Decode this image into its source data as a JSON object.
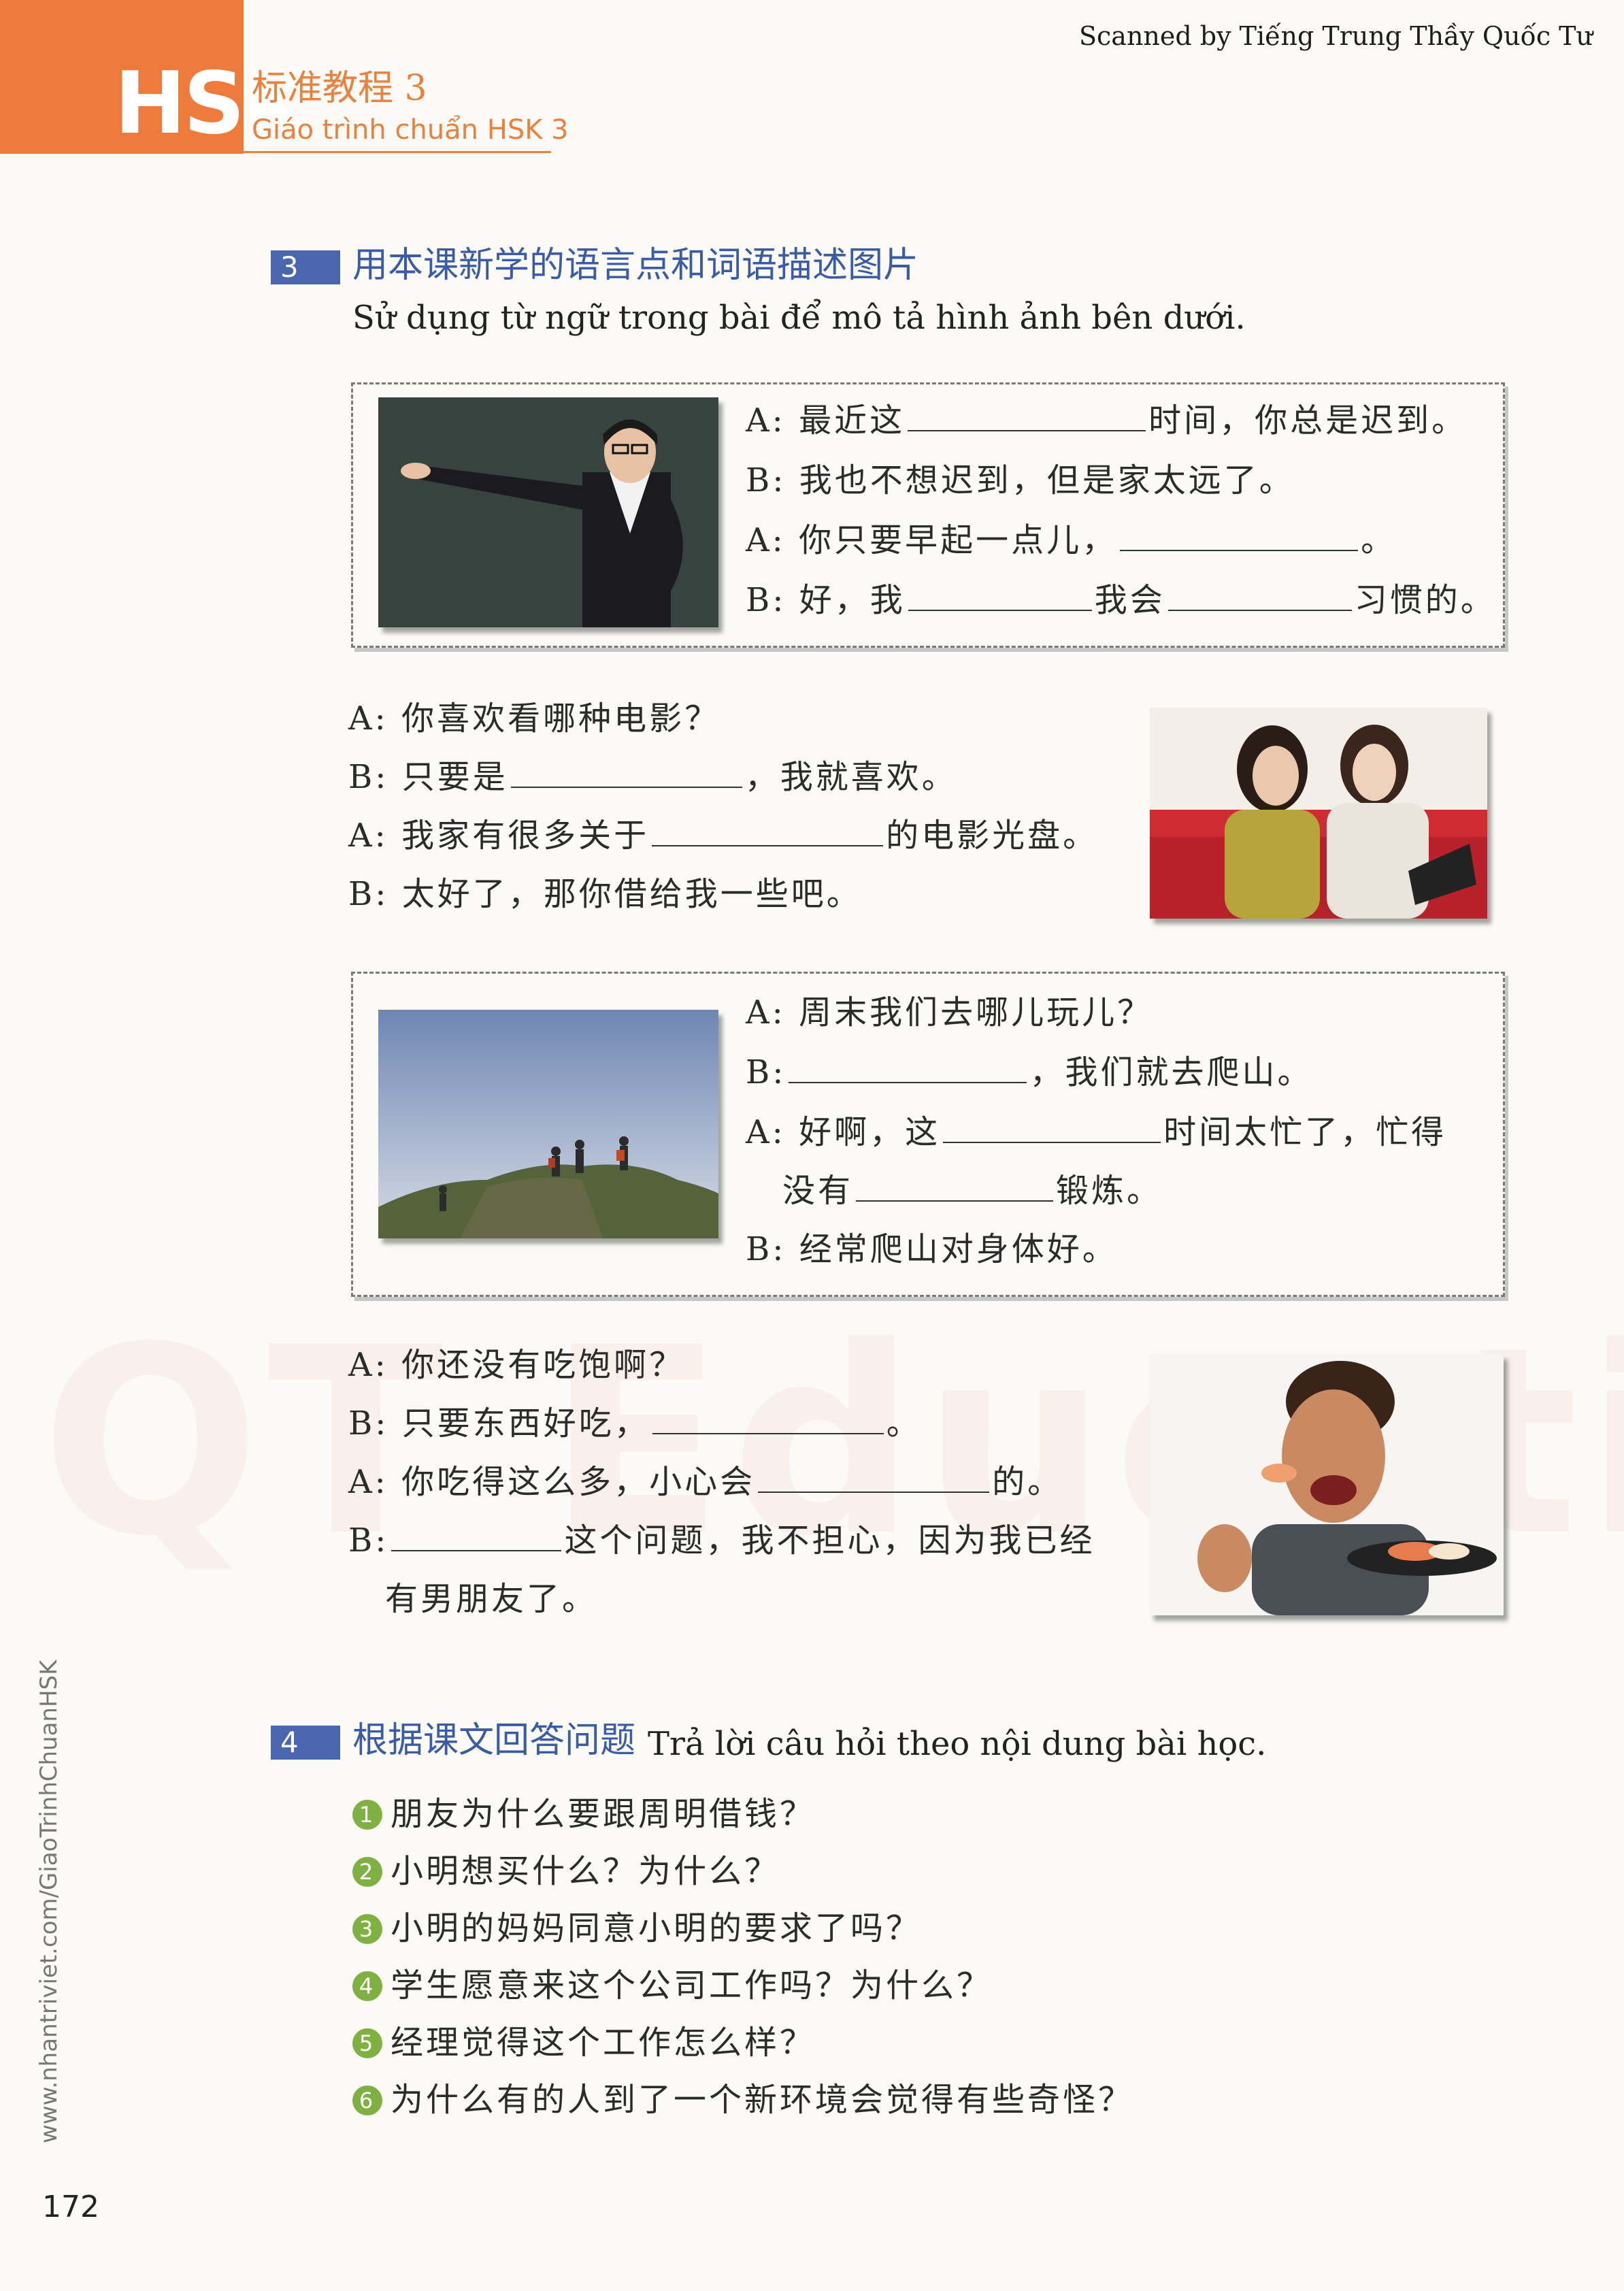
{
  "header": {
    "logo_text": "HSK",
    "book_title_cn": "标准教程 3",
    "book_title_vn": "Giáo trình chuẩn HSK 3",
    "scanned_by": "Scanned by Tiếng Trung Thầy Quốc Tư"
  },
  "section3": {
    "number": "3",
    "title_cn": "用本课新学的语言点和词语描述图片",
    "title_vn": "Sử dụng từ ngữ trong bài để mô tả hình ảnh bên dưới.",
    "dialog1": {
      "l1a": "A: 最近这",
      "l1b": "时间，你总是迟到。",
      "l2": "B: 我也不想迟到，但是家太远了。",
      "l3a": "A: 你只要早起一点儿，",
      "l3b": "。",
      "l4a": "B: 好，我",
      "l4b": "我会",
      "l4c": "习惯的。"
    },
    "dialog2": {
      "l1": "A: 你喜欢看哪种电影？",
      "l2a": "B: 只要是",
      "l2b": "，我就喜欢。",
      "l3a": "A: 我家有很多关于",
      "l3b": "的电影光盘。",
      "l4": "B: 太好了，那你借给我一些吧。"
    },
    "dialog3": {
      "l1": "A: 周末我们去哪儿玩儿？",
      "l2a": "B:",
      "l2b": "，我们就去爬山。",
      "l3a": "A: 好啊，这",
      "l3b": "时间太忙了，忙得",
      "l4a": "没有",
      "l4b": "锻炼。",
      "l5": "B: 经常爬山对身体好。"
    },
    "dialog4": {
      "l1": "A: 你还没有吃饱啊？",
      "l2a": "B: 只要东西好吃，",
      "l2b": "。",
      "l3a": "A: 你吃得这么多，小心会",
      "l3b": "的。",
      "l4a": "B:",
      "l4b": "这个问题，我不担心，因为我已经",
      "l5": "有男朋友了。"
    }
  },
  "section4": {
    "number": "4",
    "title_cn": "根据课文回答问题",
    "title_vn": "Trả lời câu hỏi theo nội dung bài học.",
    "questions": [
      {
        "num": "1",
        "text": "朋友为什么要跟周明借钱？"
      },
      {
        "num": "2",
        "text": "小明想买什么？为什么？"
      },
      {
        "num": "3",
        "text": "小明的妈妈同意小明的要求了吗？"
      },
      {
        "num": "4",
        "text": "学生愿意来这个公司工作吗？为什么？"
      },
      {
        "num": "5",
        "text": "经理觉得这个工作怎么样？"
      },
      {
        "num": "6",
        "text": "为什么有的人到了一个新环境会觉得有些奇怪？"
      }
    ]
  },
  "footer": {
    "page_number": "172",
    "side_url": "www.nhantriviet.com/GiaoTrinhChuanHSK"
  },
  "watermark": "QT Education",
  "colors": {
    "orange": "#ee7b3b",
    "section_blue": "#4a67ad",
    "title_blue": "#3a5ba6",
    "bullet_green": "#7fb042"
  }
}
